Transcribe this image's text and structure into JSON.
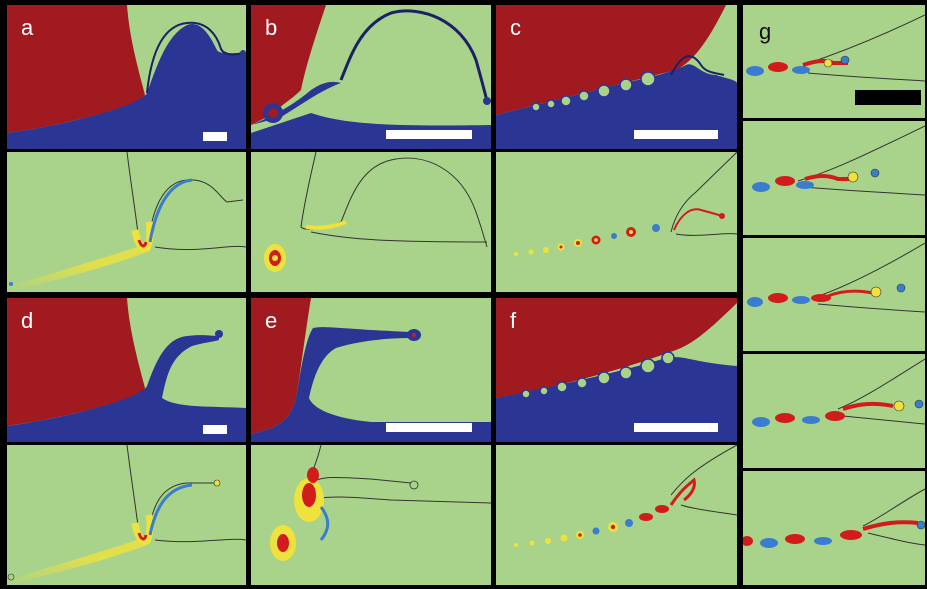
{
  "figure": {
    "panel_labels": {
      "a": "a",
      "b": "b",
      "c": "c",
      "d": "d",
      "e": "e",
      "f": "f",
      "g": "g"
    },
    "colors": {
      "background_fluid": "#a9d38a",
      "dense_phase": "#a01a1f",
      "light_phase": "#2b3593",
      "vorticity_positive": "#d21c1c",
      "vorticity_mid": "#f0e23c",
      "vorticity_negative": "#3a7dd0",
      "scale_bar": "#ffffff",
      "scale_bar_g": "#000000"
    }
  }
}
